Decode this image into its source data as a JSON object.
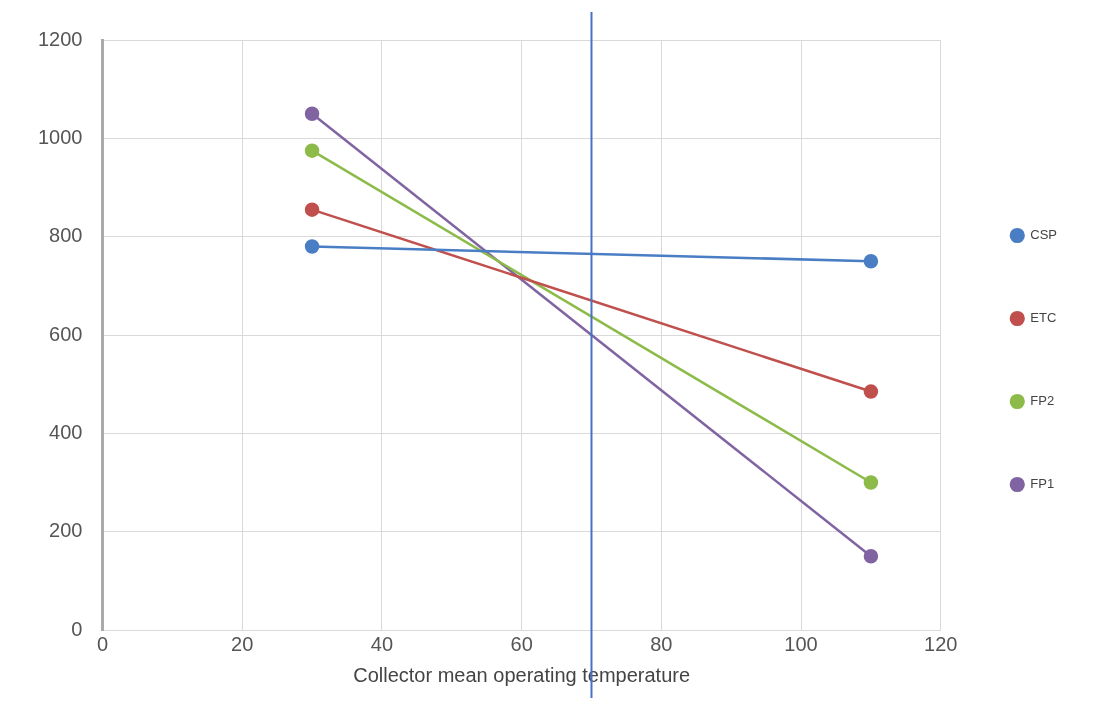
{
  "chart_data": {
    "type": "line",
    "xlabel": "Collector mean operating temperature",
    "x": [
      30,
      110
    ],
    "xlim": [
      0,
      120
    ],
    "xticks": [
      0,
      20,
      40,
      60,
      80,
      100,
      120
    ],
    "ylim": [
      0,
      1200
    ],
    "yticks": [
      0,
      200,
      400,
      600,
      800,
      1000,
      1200
    ],
    "grid": true,
    "legend": "right",
    "marker": "circle",
    "line_style": "solid",
    "series": [
      {
        "name": "CSP",
        "color": "#4a7ec4",
        "values": [
          780,
          750
        ]
      },
      {
        "name": "ETC",
        "color": "#c0504d",
        "values": [
          855,
          485
        ]
      },
      {
        "name": "FP2",
        "color": "#8cbb4a",
        "values": [
          975,
          300
        ]
      },
      {
        "name": "FP1",
        "color": "#8064a2",
        "values": [
          1050,
          150
        ]
      }
    ],
    "ref_lines": [
      {
        "axis": "x",
        "value": 70,
        "color": "#4472c4"
      }
    ]
  }
}
